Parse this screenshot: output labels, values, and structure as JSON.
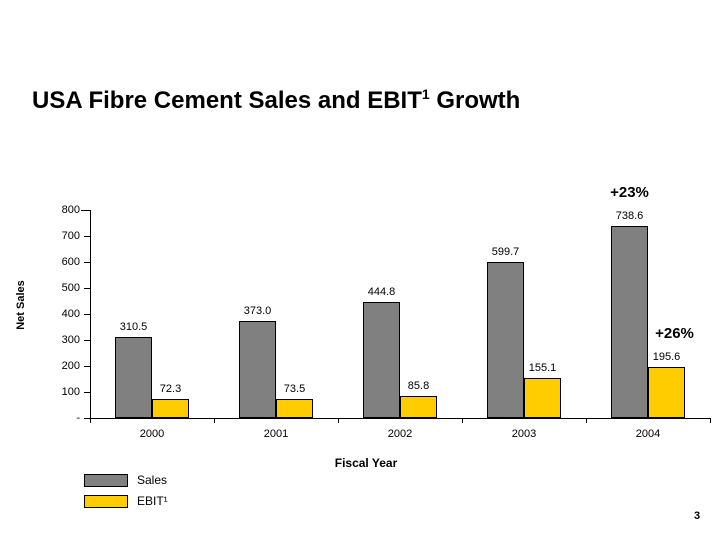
{
  "slide": {
    "page_number": "3"
  },
  "title": {
    "text_main": "USA Fibre Cement Sales and EBIT",
    "superscript": "1",
    "text_end": "Growth"
  },
  "chart_data": {
    "type": "bar",
    "title": "USA Fibre Cement Sales and EBIT¹ Growth",
    "categories": [
      "2000",
      "2001",
      "2002",
      "2003",
      "2004"
    ],
    "series": [
      {
        "name": "Sales",
        "color": "#808080",
        "values": [
          310.5,
          373.0,
          444.8,
          599.7,
          738.6
        ],
        "value_labels": [
          "310.5",
          "373.0",
          "444.8",
          "599.7",
          "738.6"
        ]
      },
      {
        "name": "EBIT¹",
        "color": "#FFCC00",
        "values": [
          72.3,
          73.5,
          85.8,
          155.1,
          195.6
        ],
        "value_labels": [
          "72.3",
          "73.5",
          "85.8",
          "155.1",
          "195.6"
        ]
      }
    ],
    "annotations": [
      {
        "text": "+23%",
        "series_index": 0,
        "category_index": 4
      },
      {
        "text": "+26%",
        "series_index": 1,
        "category_index": 4
      }
    ],
    "xlabel": "Fiscal Year",
    "ylabel": "Net Sales",
    "ylim": [
      0,
      800
    ],
    "ytick_labels": [
      "800",
      "700",
      "600",
      "500",
      "400",
      "300",
      "200",
      "100",
      "-"
    ],
    "legend": [
      {
        "label": "Sales",
        "color": "#808080"
      },
      {
        "label": "EBIT¹",
        "color": "#FFCC00"
      }
    ],
    "legend_position": "bottom-left",
    "grid": false
  }
}
